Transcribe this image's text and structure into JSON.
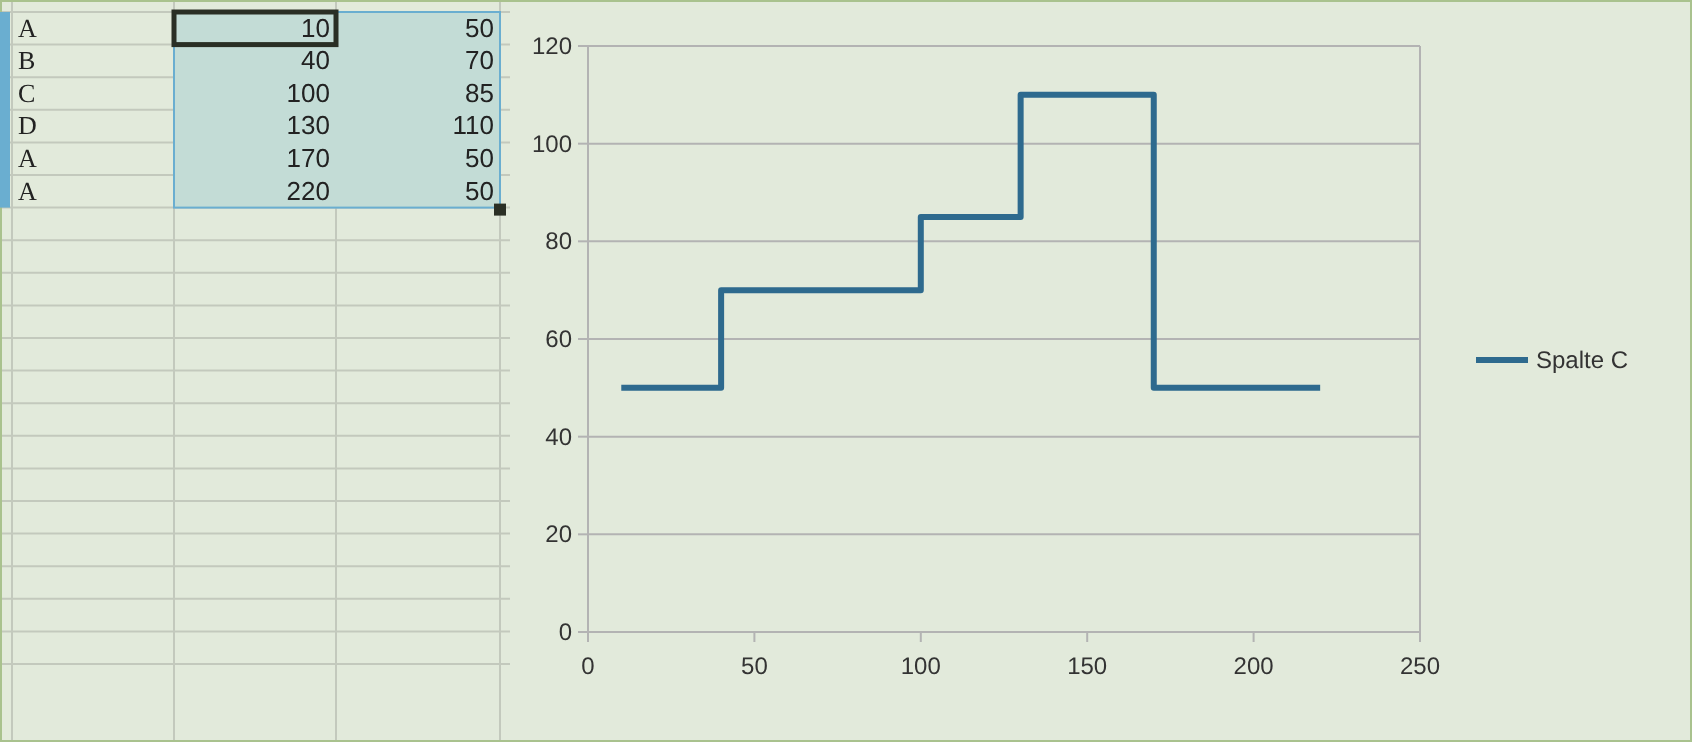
{
  "chart_data": {
    "type": "step",
    "x": [
      10,
      40,
      100,
      130,
      170,
      220
    ],
    "series": [
      {
        "name": "Spalte C",
        "color": "#2e6a8e",
        "values": [
          50,
          70,
          85,
          110,
          50,
          50
        ]
      }
    ],
    "xlim": [
      0,
      250
    ],
    "xticks": [
      0,
      50,
      100,
      150,
      200,
      250
    ],
    "ylim": [
      0,
      120
    ],
    "yticks": [
      0,
      20,
      40,
      60,
      80,
      100,
      120
    ],
    "grid": "y",
    "legend": "right",
    "annotations": [
      "A",
      "10",
      "50",
      "B",
      "40",
      "70",
      "C",
      "100",
      "85",
      "D",
      "130",
      "110",
      "A",
      "170",
      "50",
      "A",
      "220",
      "50"
    ]
  }
}
